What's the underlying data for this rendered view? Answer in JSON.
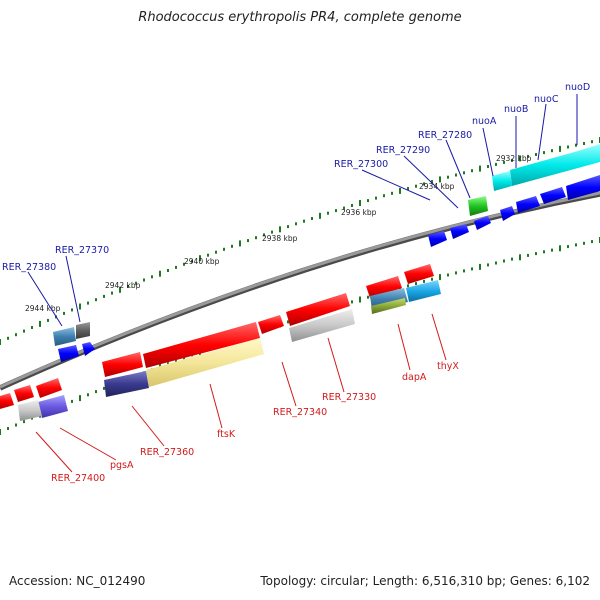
{
  "title": "Rhodococcus erythropolis PR4, complete genome",
  "footer": {
    "accession": "Accession: NC_012490",
    "summary": "Topology: circular; Length: 6,516,310 bp; Genes: 6,102"
  },
  "colors": {
    "backbone": "#8a8a8a",
    "tick": "#1e7a1e",
    "top_label": "#1a1aa6",
    "bottom_label": "#d11a1a"
  },
  "ticks": [
    {
      "label": "2932 kbp"
    },
    {
      "label": "2934 kbp"
    },
    {
      "label": "2936 kbp"
    },
    {
      "label": "2938 kbp"
    },
    {
      "label": "2940 kbp"
    },
    {
      "label": "2942 kbp"
    },
    {
      "label": "2944 kbp"
    }
  ],
  "top_labels": [
    "nuoD",
    "nuoC",
    "nuoB",
    "nuoA",
    "RER_27280",
    "RER_27290",
    "RER_27300",
    "RER_27370",
    "RER_27380"
  ],
  "bottom_labels": [
    "thyX",
    "dapA",
    "RER_27330",
    "RER_27340",
    "ftsK",
    "RER_27360",
    "pgsA",
    "RER_27400"
  ]
}
